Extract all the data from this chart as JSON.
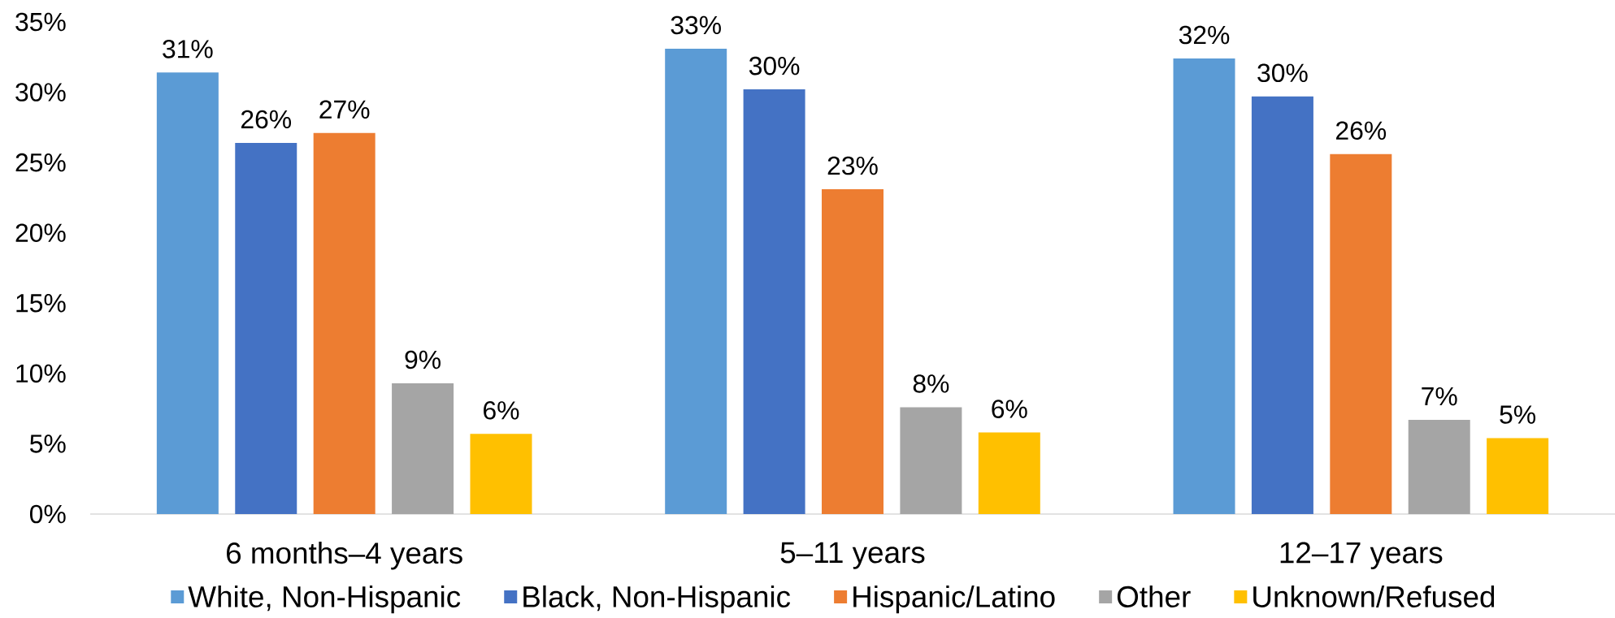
{
  "chart_data": {
    "type": "bar",
    "categories": [
      "6 months–4 years",
      "5–11 years",
      "12–17 years"
    ],
    "series": [
      {
        "name": "White, Non-Hispanic",
        "color": "#5b9bd5",
        "values": [
          31.4,
          33.1,
          32.4
        ],
        "value_labels": [
          "31%",
          "33%",
          "32%"
        ]
      },
      {
        "name": "Black, Non-Hispanic",
        "color": "#4472c4",
        "values": [
          26.4,
          30.2,
          29.7
        ],
        "value_labels": [
          "26%",
          "30%",
          "30%"
        ]
      },
      {
        "name": "Hispanic/Latino",
        "color": "#ed7d31",
        "values": [
          27.1,
          23.1,
          25.6
        ],
        "value_labels": [
          "27%",
          "23%",
          "26%"
        ]
      },
      {
        "name": "Other",
        "color": "#a5a5a5",
        "values": [
          9.3,
          7.6,
          6.7
        ],
        "value_labels": [
          "9%",
          "8%",
          "7%"
        ]
      },
      {
        "name": "Unknown/Refused",
        "color": "#ffc000",
        "values": [
          5.7,
          5.8,
          5.4
        ],
        "value_labels": [
          "6%",
          "6%",
          "5%"
        ]
      }
    ],
    "ylim": [
      0,
      35
    ],
    "yticks": [
      {
        "value": 0,
        "label": "0%"
      },
      {
        "value": 5,
        "label": "5%"
      },
      {
        "value": 10,
        "label": "10%"
      },
      {
        "value": 15,
        "label": "15%"
      },
      {
        "value": 20,
        "label": "20%"
      },
      {
        "value": 25,
        "label": "25%"
      },
      {
        "value": 30,
        "label": "30%"
      },
      {
        "value": 35,
        "label": "35%"
      }
    ],
    "legend": "bottom"
  }
}
